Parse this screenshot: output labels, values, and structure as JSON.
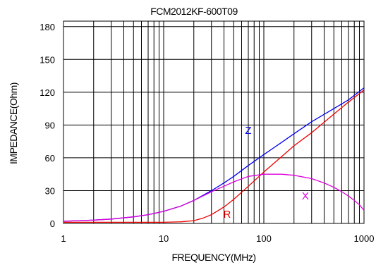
{
  "chart_data": {
    "type": "line",
    "title": "FCM2012KF-600T09",
    "xlabel": "FREQUENCY(MHz)",
    "ylabel": "IMPEDANCE(Ohm)",
    "x_scale": "log",
    "xlim": [
      1,
      1000
    ],
    "ylim": [
      0,
      185
    ],
    "x_ticks": [
      1,
      10,
      100,
      1000
    ],
    "x_tick_labels": [
      "1",
      "10",
      "100",
      "1000"
    ],
    "y_ticks": [
      0,
      30,
      60,
      90,
      120,
      150,
      180
    ],
    "y_tick_labels": [
      "0",
      "30",
      "60",
      "90",
      "120",
      "150",
      "180"
    ],
    "grid": true,
    "series": [
      {
        "name": "Z",
        "color": "#0000ee",
        "label_at": [
          70,
          82
        ],
        "x": [
          1,
          2,
          3,
          5,
          7,
          10,
          15,
          20,
          30,
          40,
          50,
          70,
          100,
          150,
          200,
          300,
          500,
          700,
          1000
        ],
        "y": [
          2,
          3,
          4,
          6,
          8,
          11,
          16,
          21,
          30,
          37,
          43,
          53,
          63,
          74,
          82,
          93,
          105,
          113,
          124
        ]
      },
      {
        "name": "R",
        "color": "#ee0000",
        "label_at": [
          43,
          5
        ],
        "x": [
          1,
          2,
          5,
          10,
          15,
          20,
          25,
          30,
          40,
          50,
          70,
          100,
          150,
          200,
          300,
          500,
          700,
          1000
        ],
        "y": [
          1,
          1,
          1,
          1,
          1.5,
          2.5,
          5,
          8,
          15,
          22,
          34,
          47,
          61,
          71,
          83,
          100,
          111,
          122
        ]
      },
      {
        "name": "X",
        "color": "#dd00dd",
        "label_at": [
          260,
          22
        ],
        "x": [
          1,
          2,
          3,
          5,
          7,
          10,
          15,
          20,
          30,
          40,
          50,
          70,
          100,
          150,
          200,
          300,
          400,
          500,
          600,
          700,
          800,
          900,
          1000
        ],
        "y": [
          2,
          3,
          4,
          6,
          8,
          11,
          16,
          21,
          29,
          34,
          38,
          43,
          45,
          45,
          44,
          41,
          37,
          33,
          29,
          25,
          21,
          17,
          12
        ]
      }
    ]
  }
}
